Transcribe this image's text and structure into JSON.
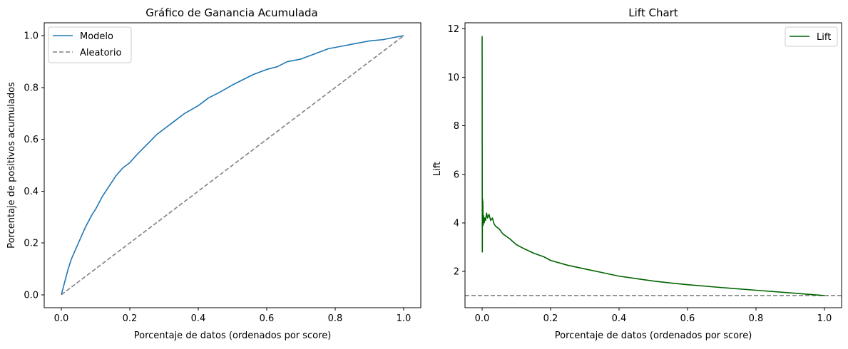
{
  "chart_data": [
    {
      "type": "line",
      "title": "Gráfico de Ganancia Acumulada",
      "xlabel": "Porcentaje de datos (ordenados por score)",
      "ylabel": "Porcentaje de positivos acumulados",
      "xlim": [
        -0.05,
        1.05
      ],
      "ylim": [
        -0.05,
        1.05
      ],
      "xticks": [
        0.0,
        0.2,
        0.4,
        0.6,
        0.8,
        1.0
      ],
      "xtick_labels": [
        "0.0",
        "0.2",
        "0.4",
        "0.6",
        "0.8",
        "1.0"
      ],
      "yticks": [
        0.0,
        0.2,
        0.4,
        0.6,
        0.8,
        1.0
      ],
      "ytick_labels": [
        "0.0",
        "0.2",
        "0.4",
        "0.6",
        "0.8",
        "1.0"
      ],
      "grid": false,
      "legend_position": "upper-left",
      "series": [
        {
          "name": "Modelo",
          "color": "#1f77b4",
          "style": "solid",
          "x": [
            0.0,
            0.01,
            0.02,
            0.03,
            0.05,
            0.07,
            0.09,
            0.1,
            0.12,
            0.14,
            0.16,
            0.18,
            0.2,
            0.22,
            0.25,
            0.28,
            0.3,
            0.33,
            0.36,
            0.4,
            0.43,
            0.46,
            0.5,
            0.53,
            0.56,
            0.6,
            0.63,
            0.66,
            0.7,
            0.74,
            0.78,
            0.82,
            0.86,
            0.9,
            0.94,
            0.97,
            1.0
          ],
          "y": [
            0.0,
            0.05,
            0.1,
            0.14,
            0.2,
            0.26,
            0.31,
            0.33,
            0.38,
            0.42,
            0.46,
            0.49,
            0.51,
            0.54,
            0.58,
            0.62,
            0.64,
            0.67,
            0.7,
            0.73,
            0.76,
            0.78,
            0.81,
            0.83,
            0.85,
            0.87,
            0.88,
            0.9,
            0.91,
            0.93,
            0.95,
            0.96,
            0.97,
            0.98,
            0.985,
            0.993,
            1.0
          ]
        },
        {
          "name": "Aleatorio",
          "color": "#808080",
          "style": "dashed",
          "x": [
            0.0,
            1.0
          ],
          "y": [
            0.0,
            1.0
          ]
        }
      ]
    },
    {
      "type": "line",
      "title": "Lift Chart",
      "xlabel": "Porcentaje de datos (ordenados por score)",
      "ylabel": "Lift",
      "xlim": [
        -0.05,
        1.05
      ],
      "ylim": [
        0.5,
        12.25
      ],
      "xticks": [
        0.0,
        0.2,
        0.4,
        0.6,
        0.8,
        1.0
      ],
      "xtick_labels": [
        "0.0",
        "0.2",
        "0.4",
        "0.6",
        "0.8",
        "1.0"
      ],
      "yticks": [
        2,
        4,
        6,
        8,
        10,
        12
      ],
      "ytick_labels": [
        "2",
        "4",
        "6",
        "8",
        "10",
        "12"
      ],
      "grid": false,
      "legend_position": "upper-right",
      "reference_line": {
        "y": 1.0,
        "color": "#808080",
        "style": "dashed"
      },
      "series": [
        {
          "name": "Lift",
          "color": "#006400",
          "style": "solid",
          "x": [
            0.0,
            0.0003,
            0.0006,
            0.001,
            0.0015,
            0.002,
            0.003,
            0.004,
            0.006,
            0.008,
            0.01,
            0.013,
            0.016,
            0.02,
            0.025,
            0.03,
            0.035,
            0.04,
            0.05,
            0.06,
            0.08,
            0.1,
            0.12,
            0.15,
            0.18,
            0.2,
            0.25,
            0.3,
            0.35,
            0.4,
            0.45,
            0.5,
            0.55,
            0.6,
            0.7,
            0.8,
            0.9,
            1.0
          ],
          "y": [
            11.7,
            5.8,
            2.8,
            5.0,
            4.5,
            4.9,
            3.9,
            4.3,
            4.0,
            4.2,
            4.1,
            4.4,
            4.2,
            4.35,
            4.1,
            4.2,
            3.95,
            3.85,
            3.75,
            3.55,
            3.35,
            3.1,
            2.95,
            2.75,
            2.6,
            2.45,
            2.25,
            2.1,
            1.95,
            1.8,
            1.7,
            1.6,
            1.52,
            1.45,
            1.33,
            1.22,
            1.11,
            1.0
          ]
        }
      ]
    }
  ]
}
